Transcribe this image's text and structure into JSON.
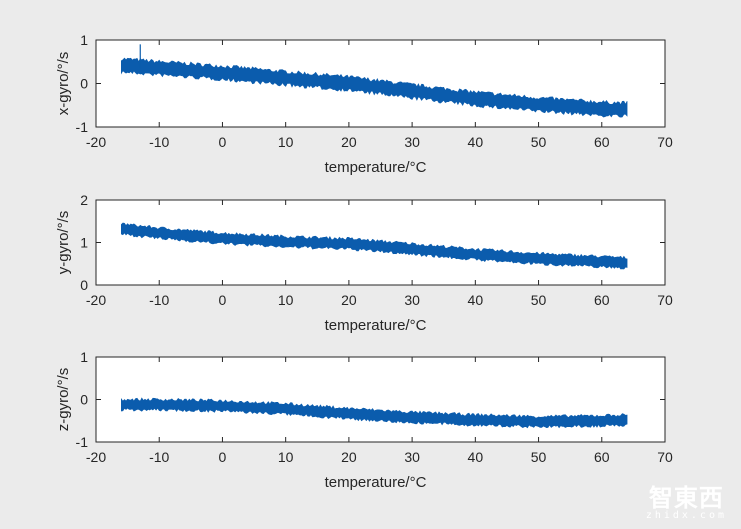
{
  "colors": {
    "series": "#0b5cad",
    "axes_bg": "#ffffff",
    "figure_bg": "#ebebeb"
  },
  "watermark": {
    "cn": "智東西",
    "url": "zhidx.com"
  },
  "chart_data": [
    {
      "type": "line",
      "xlabel": "temperature/°C",
      "ylabel": "x-gyro/°/s",
      "xlim": [
        -20,
        70
      ],
      "ylim": [
        -1,
        1
      ],
      "xticks": [
        "-20",
        "-10",
        "0",
        "10",
        "20",
        "30",
        "40",
        "50",
        "60",
        "70"
      ],
      "yticks": [
        "-1",
        "0",
        "1"
      ],
      "series": [
        {
          "name": "x-gyro",
          "x": [
            -16,
            -10,
            0,
            10,
            20,
            30,
            40,
            50,
            60,
            64
          ],
          "y": [
            0.42,
            0.35,
            0.25,
            0.12,
            0.0,
            -0.18,
            -0.35,
            -0.48,
            -0.58,
            -0.6
          ],
          "noise_band": 0.15
        }
      ]
    },
    {
      "type": "line",
      "xlabel": "temperature/°C",
      "ylabel": "y-gyro/°/s",
      "xlim": [
        -20,
        70
      ],
      "ylim": [
        0,
        2
      ],
      "xticks": [
        "-20",
        "-10",
        "0",
        "10",
        "20",
        "30",
        "40",
        "50",
        "60",
        "70"
      ],
      "yticks": [
        "0",
        "1",
        "2"
      ],
      "series": [
        {
          "name": "y-gyro",
          "x": [
            -16,
            -10,
            0,
            10,
            20,
            30,
            40,
            50,
            60,
            64
          ],
          "y": [
            1.32,
            1.22,
            1.1,
            1.02,
            0.97,
            0.85,
            0.72,
            0.62,
            0.55,
            0.52
          ],
          "noise_band": 0.12
        }
      ]
    },
    {
      "type": "line",
      "xlabel": "temperature/°C",
      "ylabel": "z-gyro/°/s",
      "xlim": [
        -20,
        70
      ],
      "ylim": [
        -1,
        1
      ],
      "xticks": [
        "-20",
        "-10",
        "0",
        "10",
        "20",
        "30",
        "40",
        "50",
        "60",
        "70"
      ],
      "yticks": [
        "-1",
        "0",
        "1"
      ],
      "series": [
        {
          "name": "z-gyro",
          "x": [
            -16,
            -10,
            0,
            10,
            20,
            30,
            40,
            50,
            60,
            64
          ],
          "y": [
            -0.12,
            -0.12,
            -0.15,
            -0.22,
            -0.33,
            -0.42,
            -0.48,
            -0.52,
            -0.5,
            -0.48
          ],
          "noise_band": 0.12
        }
      ]
    }
  ]
}
